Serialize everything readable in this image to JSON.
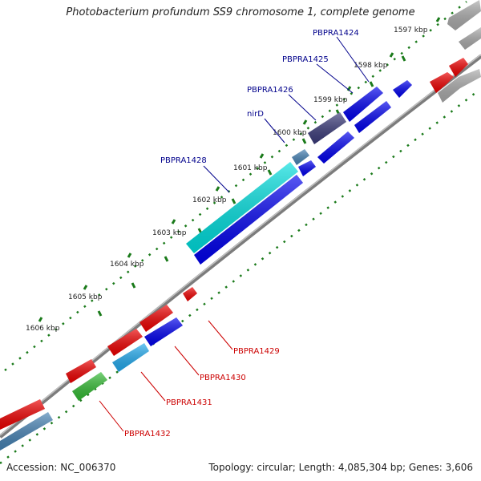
{
  "title": "Photobacterium profundum SS9 chromosome 1, complete genome",
  "footer": {
    "accession": "Accession: NC_006370",
    "info": "Topology: circular; Length: 4,085,304 bp; Genes: 3,606"
  },
  "ticks": [
    {
      "label": "1597 kbp"
    },
    {
      "label": "1598 kbp"
    },
    {
      "label": "1599 kbp"
    },
    {
      "label": "1600 kbp"
    },
    {
      "label": "1601 kbp"
    },
    {
      "label": "1602 kbp"
    },
    {
      "label": "1603 kbp"
    },
    {
      "label": "1604 kbp"
    },
    {
      "label": "1605 kbp"
    },
    {
      "label": "1606 kbp"
    }
  ],
  "gene_labels": [
    {
      "text": "PBPRA1424",
      "color": "#00008b"
    },
    {
      "text": "PBPRA1425",
      "color": "#00008b"
    },
    {
      "text": "PBPRA1426",
      "color": "#00008b"
    },
    {
      "text": "nirD",
      "color": "#00008b"
    },
    {
      "text": "PBPRA1428",
      "color": "#00008b"
    },
    {
      "text": "PBPRA1429",
      "color": "#cc0000"
    },
    {
      "text": "PBPRA1430",
      "color": "#cc0000"
    },
    {
      "text": "PBPRA1431",
      "color": "#cc0000"
    },
    {
      "text": "PBPRA1432",
      "color": "#cc0000"
    }
  ],
  "colors": {
    "backbone": "#888888",
    "tick": "#1a7a1a",
    "forward_gene": "#0000ee",
    "reverse_gene": "#ee0000",
    "nirD": "#3b3b7a",
    "PBPRA1428": "#00dede",
    "PBPRA1431": "#22aaee",
    "PBPRA1432": "#33bb33",
    "steel_gene": "#4682b4",
    "gray_gene": "#aaaaaa"
  }
}
